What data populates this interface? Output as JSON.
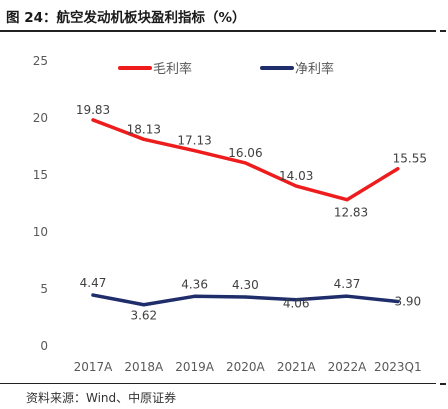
{
  "header": {
    "title": "图 24：航空发动机板块盈利指标（%）"
  },
  "footer": {
    "source": "资料来源：Wind、中原证券"
  },
  "chart_data": {
    "type": "line",
    "categories": [
      "2017A",
      "2018A",
      "2019A",
      "2020A",
      "2021A",
      "2022A",
      "2023Q1"
    ],
    "ylim": [
      0,
      25
    ],
    "yticks": [
      0,
      5,
      10,
      15,
      20,
      25
    ],
    "grid": false,
    "legend_position": "top",
    "series": [
      {
        "name": "毛利率",
        "color": "#ee1c1c",
        "values": [
          19.83,
          18.13,
          17.13,
          16.06,
          14.03,
          12.83,
          15.55
        ],
        "labels": [
          "19.83",
          "18.13",
          "17.13",
          "16.06",
          "14.03",
          "12.83",
          "15.55"
        ]
      },
      {
        "name": "净利率",
        "color": "#1f2d6b",
        "values": [
          4.47,
          3.62,
          4.36,
          4.3,
          4.06,
          4.37,
          3.9
        ],
        "labels": [
          "4.47",
          "3.62",
          "4.36",
          "4.30",
          "4.06",
          "4.37",
          "3.90"
        ]
      }
    ]
  }
}
